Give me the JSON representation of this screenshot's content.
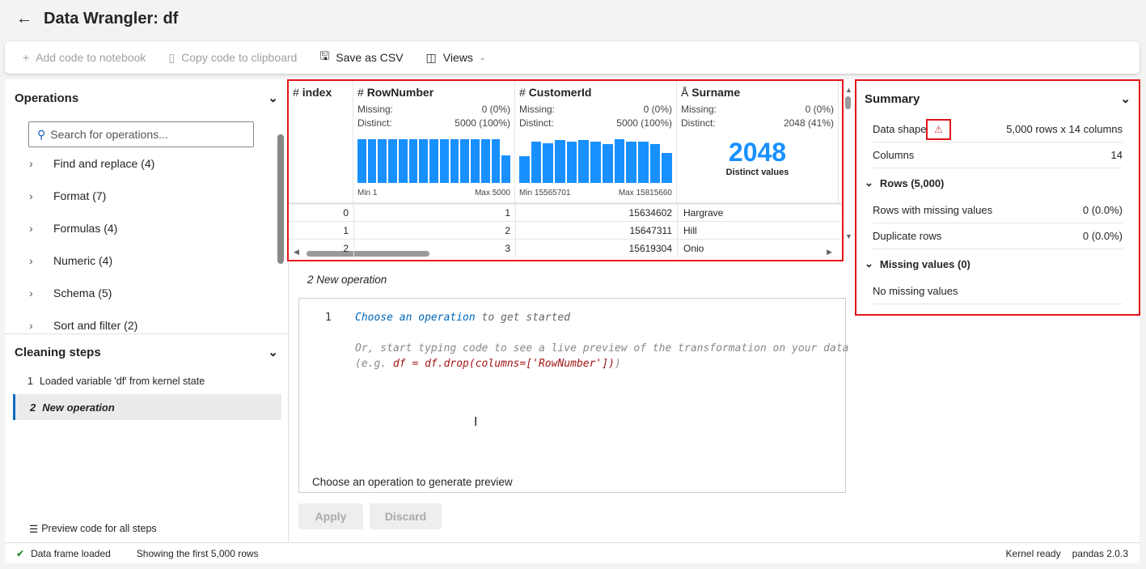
{
  "header": {
    "title": "Data Wrangler: df"
  },
  "toolbar": {
    "add_code": "Add code to notebook",
    "copy_code": "Copy code to clipboard",
    "save_csv": "Save as CSV",
    "views": "Views"
  },
  "operations": {
    "title": "Operations",
    "search_placeholder": "Search for operations...",
    "items": [
      "Find and replace (4)",
      "Format (7)",
      "Formulas (4)",
      "Numeric (4)",
      "Schema (5)",
      "Sort and filter (2)"
    ]
  },
  "cleaning": {
    "title": "Cleaning steps",
    "steps": [
      {
        "num": "1",
        "label": "Loaded variable 'df' from kernel state"
      },
      {
        "num": "2",
        "label": "New operation"
      }
    ],
    "preview_all": "Preview code for all steps"
  },
  "grid": {
    "columns": [
      {
        "type": "#",
        "name": "index"
      },
      {
        "type": "#",
        "name": "RowNumber",
        "missing_label": "Missing:",
        "missing": "0 (0%)",
        "distinct_label": "Distinct:",
        "distinct": "5000 (100%)",
        "min": "Min 1",
        "max": "Max 5000",
        "histogram": [
          1,
          1,
          1,
          1,
          1,
          1,
          1,
          1,
          1,
          1,
          1,
          1,
          1,
          1,
          0.63
        ]
      },
      {
        "type": "#",
        "name": "CustomerId",
        "missing_label": "Missing:",
        "missing": "0 (0%)",
        "distinct_label": "Distinct:",
        "distinct": "5000 (100%)",
        "min": "Min 15565701",
        "max": "Max 15815660",
        "histogram": [
          0.62,
          0.95,
          0.9,
          0.98,
          0.94,
          0.98,
          0.95,
          0.88,
          1,
          0.95,
          0.95,
          0.88,
          0.68
        ]
      },
      {
        "type": "text",
        "name": "Surname",
        "missing_label": "Missing:",
        "missing": "0 (0%)",
        "distinct_label": "Distinct:",
        "distinct": "2048 (41%)",
        "big": "2048",
        "big_label": "Distinct values"
      }
    ],
    "rows": [
      [
        "0",
        "1",
        "15634602",
        "Hargrave"
      ],
      [
        "1",
        "2",
        "15647311",
        "Hill"
      ],
      [
        "2",
        "3",
        "15619304",
        "Onio"
      ]
    ]
  },
  "editor": {
    "step_label": "2  New operation",
    "line": "1",
    "link": "Choose an operation",
    "line1_rest": " to get started",
    "line2": "Or, start typing code to see a live preview of the transformation on your data",
    "line3_pre": "(e.g. ",
    "line3_code": "df = df.drop(columns=['RowNumber'])",
    "line3_post": ")",
    "preview_msg": "Choose an operation to generate preview",
    "apply": "Apply",
    "discard": "Discard"
  },
  "summary": {
    "title": "Summary",
    "data_shape_label": "Data shape",
    "data_shape": "5,000 rows x 14 columns",
    "columns_label": "Columns",
    "columns": "14",
    "rows_title": "Rows (5,000)",
    "rows_missing_label": "Rows with missing values",
    "rows_missing": "0 (0.0%)",
    "dup_label": "Duplicate rows",
    "dup": "0 (0.0%)",
    "missing_title": "Missing values (0)",
    "no_missing": "No missing values"
  },
  "status": {
    "loaded": "Data frame loaded",
    "showing": "Showing the first 5,000 rows",
    "kernel": "Kernel ready",
    "pandas": "pandas 2.0.3"
  },
  "colors": {
    "accent": "#1890ff",
    "highlight": "#e3141b",
    "link": "#0066b8",
    "code_red": "#a31515"
  }
}
